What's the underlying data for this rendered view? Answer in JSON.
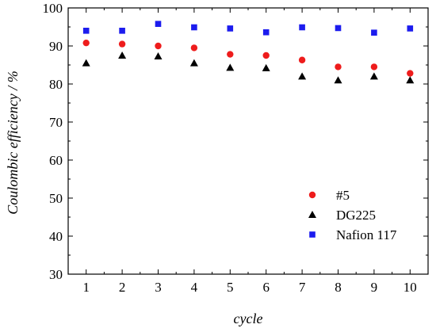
{
  "chart_data": {
    "type": "scatter",
    "title": "",
    "xlabel": "cycle",
    "ylabel": "Coulombic efficiency / %",
    "xlim": [
      0.5,
      10.5
    ],
    "ylim": [
      30,
      100
    ],
    "x_ticks": [
      1,
      2,
      3,
      4,
      5,
      6,
      7,
      8,
      9,
      10
    ],
    "y_ticks": [
      30,
      40,
      50,
      60,
      70,
      80,
      90,
      100
    ],
    "grid": false,
    "legend_position": "bottom-right",
    "series": [
      {
        "name": "#5",
        "marker": "circle",
        "color": "#ee1c1c",
        "x": [
          1,
          2,
          3,
          4,
          5,
          6,
          7,
          8,
          9,
          10
        ],
        "y": [
          90.8,
          90.5,
          90.0,
          89.5,
          87.8,
          87.5,
          86.3,
          84.5,
          84.5,
          82.8
        ]
      },
      {
        "name": "DG225",
        "marker": "triangle",
        "color": "#000000",
        "x": [
          1,
          2,
          3,
          4,
          5,
          6,
          7,
          8,
          9,
          10
        ],
        "y": [
          85.5,
          87.5,
          87.3,
          85.5,
          84.3,
          84.2,
          82.0,
          81.0,
          82.0,
          81.0
        ]
      },
      {
        "name": "Nafion 117",
        "marker": "square",
        "color": "#1c1cee",
        "x": [
          1,
          2,
          3,
          4,
          5,
          6,
          7,
          8,
          9,
          10
        ],
        "y": [
          94.0,
          94.0,
          95.8,
          94.9,
          94.6,
          93.6,
          94.9,
          94.7,
          93.5,
          94.6
        ]
      }
    ]
  }
}
